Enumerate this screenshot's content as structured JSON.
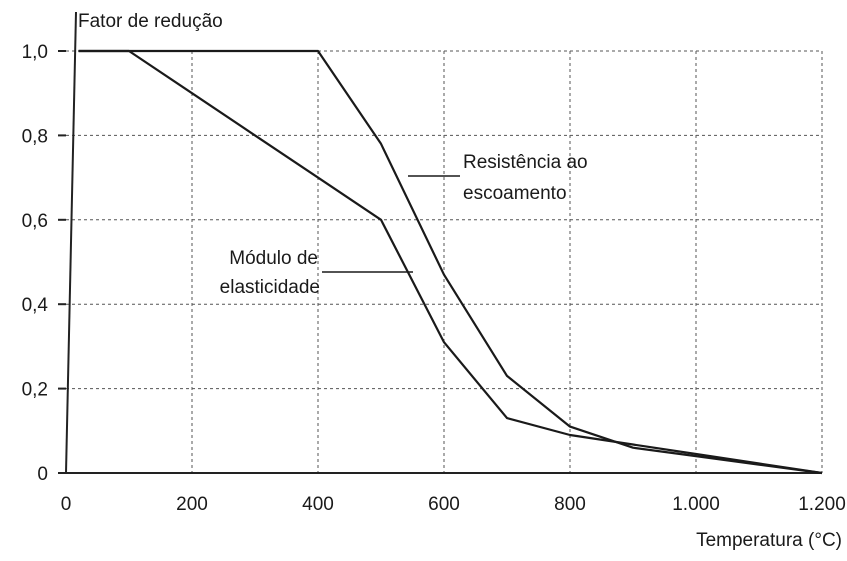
{
  "chart_data": {
    "type": "line",
    "ylabel": "Fator de redução",
    "xlabel": "Temperatura (°C)",
    "xlim": [
      0,
      1200
    ],
    "ylim": [
      0,
      1.0
    ],
    "grid": true,
    "x_ticks": [
      {
        "value": 0,
        "label": "0"
      },
      {
        "value": 200,
        "label": "200"
      },
      {
        "value": 400,
        "label": "400"
      },
      {
        "value": 600,
        "label": "600"
      },
      {
        "value": 800,
        "label": "800"
      },
      {
        "value": 1000,
        "label": "1.000"
      },
      {
        "value": 1200,
        "label": "1.200"
      }
    ],
    "y_ticks": [
      {
        "value": 0,
        "label": "0"
      },
      {
        "value": 0.2,
        "label": "0,2"
      },
      {
        "value": 0.4,
        "label": "0,4"
      },
      {
        "value": 0.6,
        "label": "0,6"
      },
      {
        "value": 0.8,
        "label": "0,8"
      },
      {
        "value": 1.0,
        "label": "1,0"
      }
    ],
    "series": [
      {
        "name": "Resistência ao escoamento",
        "label_lines": [
          "Resistência ao",
          "escoamento"
        ],
        "points": [
          [
            20,
            1.0
          ],
          [
            400,
            1.0
          ],
          [
            500,
            0.78
          ],
          [
            600,
            0.47
          ],
          [
            700,
            0.23
          ],
          [
            800,
            0.11
          ],
          [
            900,
            0.06
          ],
          [
            1000,
            0.04
          ],
          [
            1100,
            0.02
          ],
          [
            1200,
            0.0
          ]
        ]
      },
      {
        "name": "Módulo de elasticidade",
        "label_lines": [
          "Módulo de",
          "elasticidade"
        ],
        "points": [
          [
            20,
            1.0
          ],
          [
            100,
            1.0
          ],
          [
            200,
            0.9
          ],
          [
            300,
            0.8
          ],
          [
            400,
            0.7
          ],
          [
            500,
            0.6
          ],
          [
            600,
            0.31
          ],
          [
            700,
            0.13
          ],
          [
            800,
            0.09
          ],
          [
            900,
            0.0675
          ],
          [
            1000,
            0.045
          ],
          [
            1100,
            0.0225
          ],
          [
            1200,
            0.0
          ]
        ]
      }
    ]
  }
}
